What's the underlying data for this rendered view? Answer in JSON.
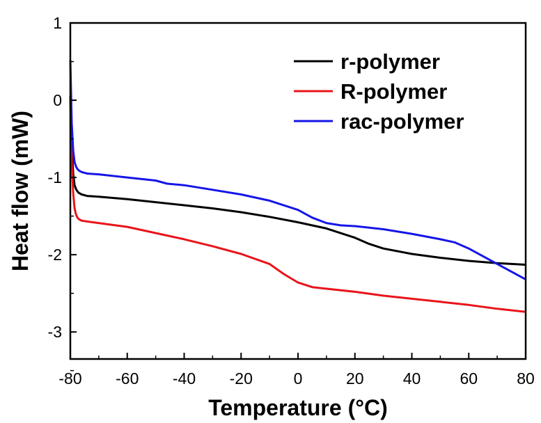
{
  "chart_data": {
    "type": "line",
    "xlabel": "Temperature (°C)",
    "ylabel": "Heat flow (mW)",
    "xlim": [
      -80,
      80
    ],
    "ylim": [
      -3.35,
      1.0
    ],
    "xticks": [
      "-80",
      "-60",
      "-40",
      "-20",
      "0",
      "20",
      "40",
      "60",
      "80"
    ],
    "yticks": [
      "1",
      "0",
      "-1",
      "-2",
      "-3"
    ],
    "grid": false,
    "legend_position": "top-right",
    "series": [
      {
        "name": "r-polymer",
        "color": "#000000",
        "x": [
          -80.0,
          -79.5,
          -79.0,
          -78.5,
          -78.0,
          -77.5,
          -77.0,
          -76.0,
          -74.0,
          -70.0,
          -60.0,
          -50.0,
          -40.0,
          -30.0,
          -20.0,
          -10.0,
          0.0,
          10.0,
          20.0,
          25.0,
          30.0,
          40.0,
          50.0,
          60.0,
          70.0,
          80.0
        ],
        "y": [
          0.05,
          -0.6,
          -0.95,
          -1.1,
          -1.15,
          -1.18,
          -1.2,
          -1.22,
          -1.24,
          -1.25,
          -1.28,
          -1.32,
          -1.36,
          -1.4,
          -1.45,
          -1.51,
          -1.58,
          -1.66,
          -1.78,
          -1.86,
          -1.92,
          -1.99,
          -2.04,
          -2.08,
          -2.11,
          -2.13
        ]
      },
      {
        "name": "R-polymer",
        "color": "#e8141a",
        "x": [
          -80.0,
          -79.5,
          -79.0,
          -78.5,
          -78.0,
          -77.5,
          -77.0,
          -76.0,
          -74.0,
          -70.0,
          -60.0,
          -50.0,
          -40.0,
          -30.0,
          -20.0,
          -10.0,
          -5.0,
          0.0,
          5.0,
          10.0,
          20.0,
          30.0,
          40.0,
          50.0,
          60.0,
          70.0,
          80.0
        ],
        "y": [
          0.0,
          -0.8,
          -1.2,
          -1.4,
          -1.48,
          -1.52,
          -1.54,
          -1.56,
          -1.57,
          -1.59,
          -1.64,
          -1.72,
          -1.8,
          -1.89,
          -1.99,
          -2.12,
          -2.25,
          -2.36,
          -2.42,
          -2.44,
          -2.48,
          -2.53,
          -2.57,
          -2.61,
          -2.65,
          -2.7,
          -2.74
        ]
      },
      {
        "name": "rac-polymer",
        "color": "#1515e8",
        "x": [
          -80.0,
          -79.5,
          -79.0,
          -78.5,
          -78.0,
          -77.5,
          -77.0,
          -76.0,
          -74.0,
          -70.0,
          -60.0,
          -50.0,
          -46.0,
          -40.0,
          -30.0,
          -20.0,
          -10.0,
          0.0,
          5.0,
          10.0,
          15.0,
          20.0,
          30.0,
          40.0,
          50.0,
          55.0,
          60.0,
          65.0,
          70.0,
          80.0
        ],
        "y": [
          0.52,
          -0.3,
          -0.65,
          -0.8,
          -0.86,
          -0.89,
          -0.91,
          -0.93,
          -0.95,
          -0.96,
          -1.0,
          -1.04,
          -1.08,
          -1.1,
          -1.16,
          -1.22,
          -1.3,
          -1.42,
          -1.52,
          -1.59,
          -1.62,
          -1.63,
          -1.67,
          -1.73,
          -1.8,
          -1.84,
          -1.92,
          -2.02,
          -2.12,
          -2.32
        ]
      }
    ]
  }
}
